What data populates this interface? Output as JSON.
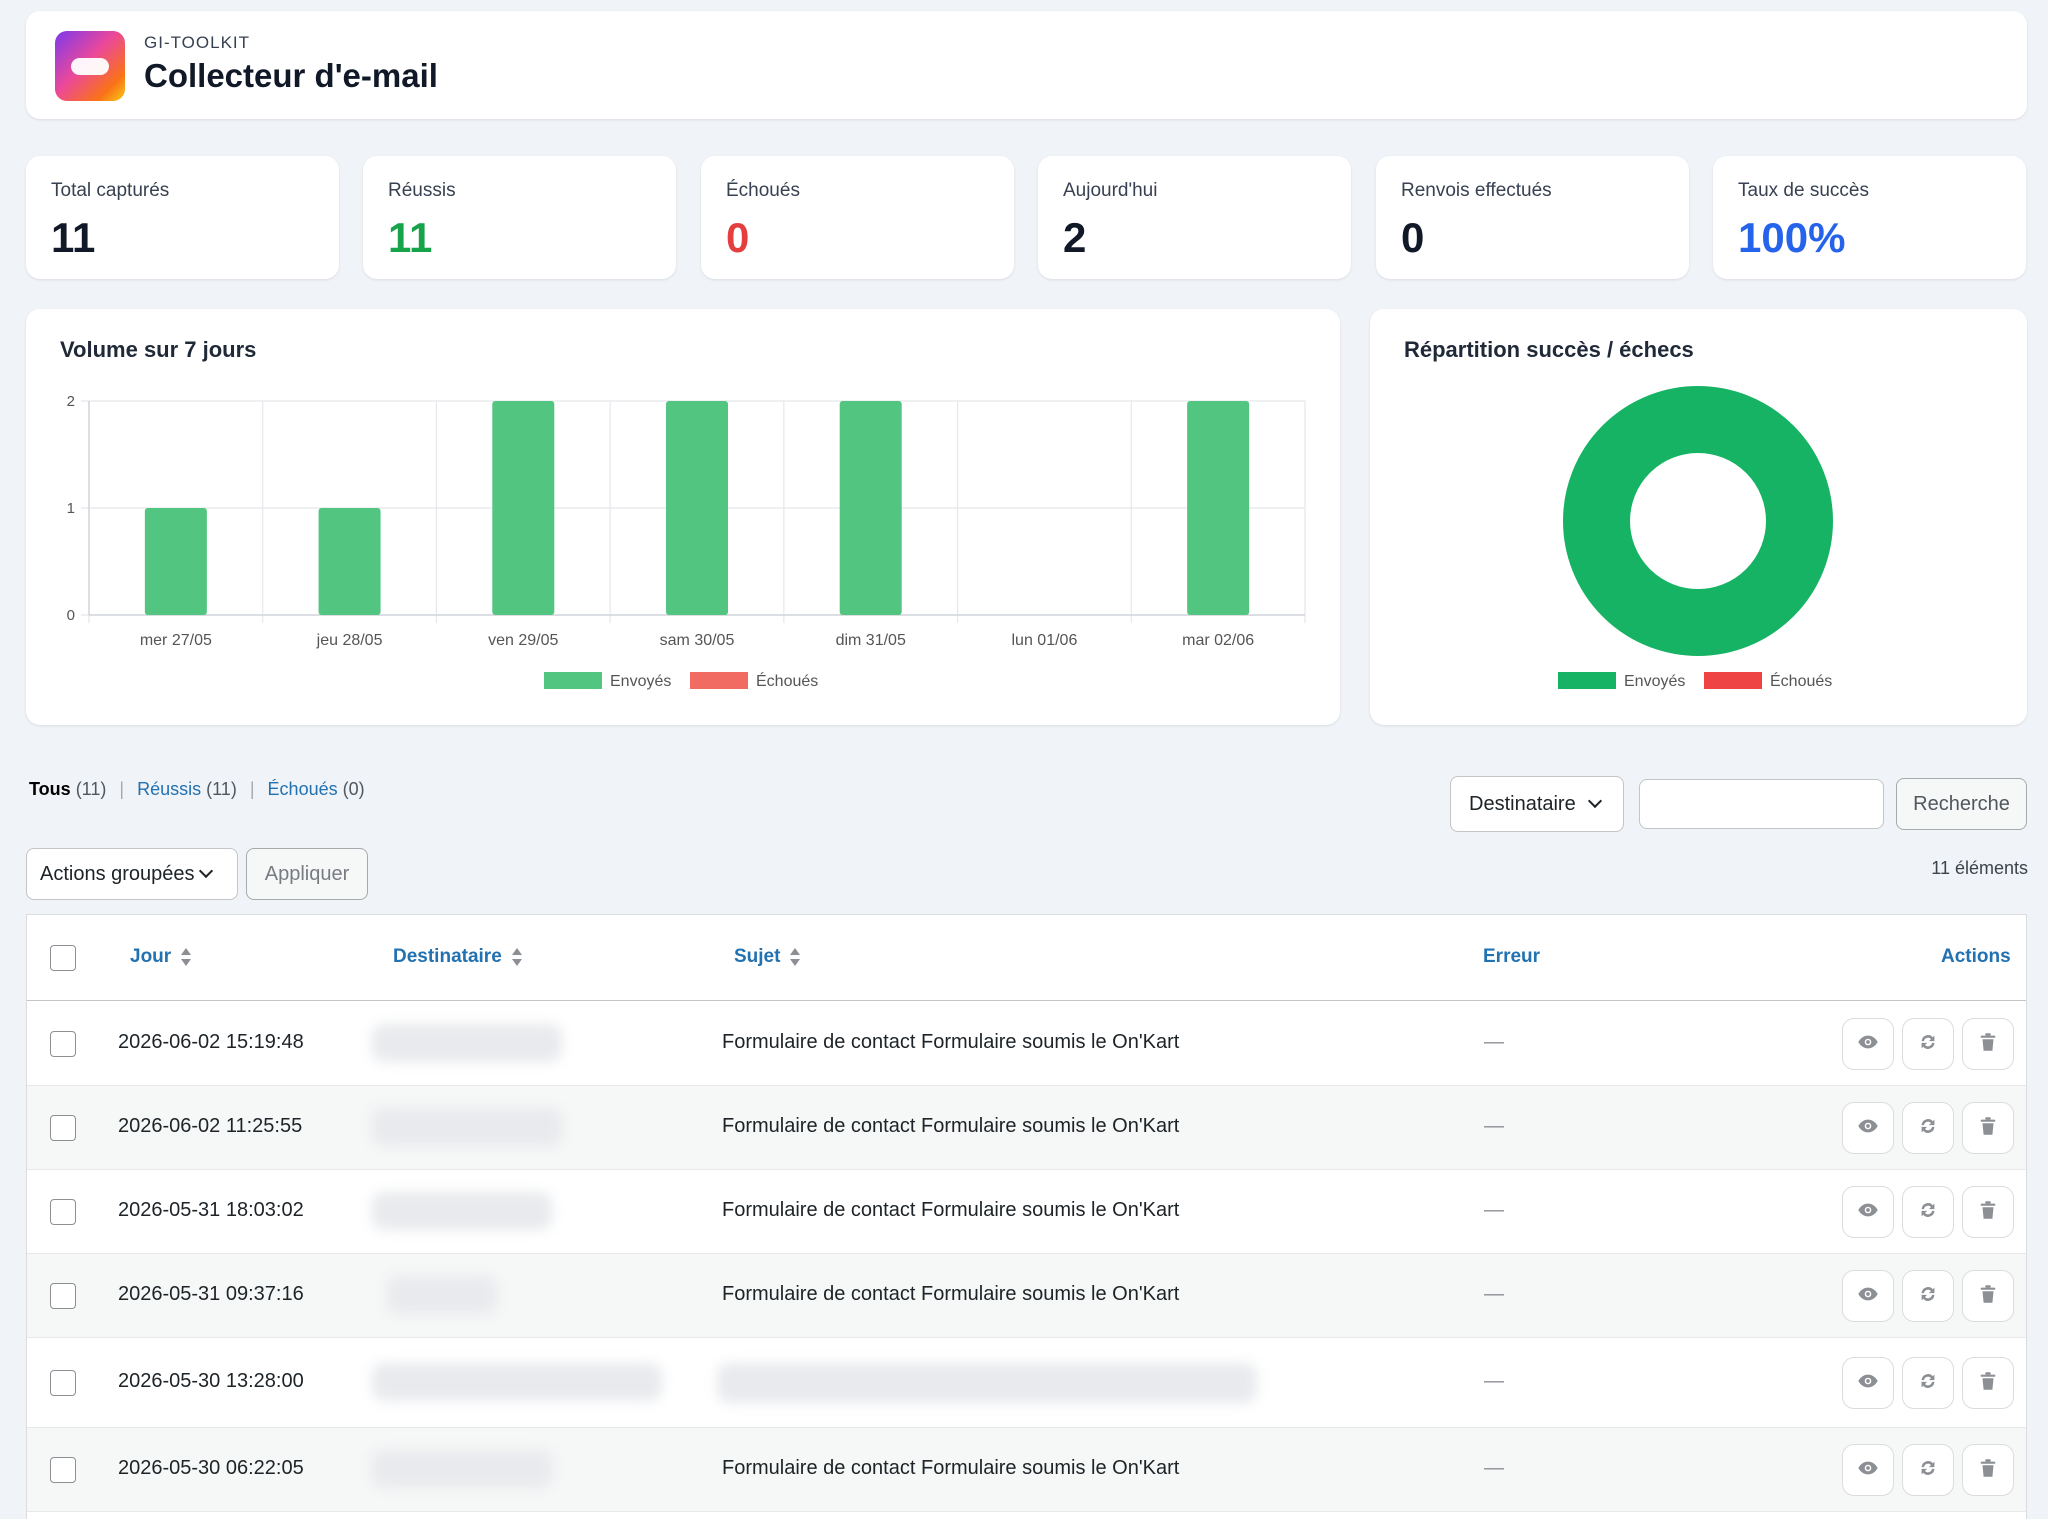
{
  "header": {
    "brand": "GI-TOOLKIT",
    "title": "Collecteur d'e-mail"
  },
  "stats": [
    {
      "label": "Total capturés",
      "value": "11",
      "color": "#111827"
    },
    {
      "label": "Réussis",
      "value": "11",
      "color": "#16a34a"
    },
    {
      "label": "Échoués",
      "value": "0",
      "color": "#e53e3e"
    },
    {
      "label": "Aujourd'hui",
      "value": "2",
      "color": "#111827"
    },
    {
      "label": "Renvois effectués",
      "value": "0",
      "color": "#111827"
    },
    {
      "label": "Taux de succès",
      "value": "100%",
      "color": "#2563eb"
    }
  ],
  "bar_chart": {
    "title": "Volume sur 7 jours"
  },
  "donut_chart": {
    "title": "Répartition succès / échecs"
  },
  "chart_data": [
    {
      "type": "bar",
      "title": "Volume sur 7 jours",
      "categories": [
        "mer 27/05",
        "jeu 28/05",
        "ven 29/05",
        "sam 30/05",
        "dim 31/05",
        "lun 01/06",
        "mar 02/06"
      ],
      "series": [
        {
          "name": "Envoyés",
          "values": [
            1,
            1,
            2,
            2,
            2,
            0,
            2
          ],
          "color": "#52c681"
        },
        {
          "name": "Échoués",
          "values": [
            0,
            0,
            0,
            0,
            0,
            0,
            0
          ],
          "color": "#f26b63"
        }
      ],
      "ylim": [
        0,
        2
      ],
      "yticks": [
        "0",
        "1",
        "2"
      ],
      "grid": true,
      "legend": "bottom"
    },
    {
      "type": "pie",
      "title": "Répartition succès / échecs",
      "labels": [
        "Envoyés",
        "Échoués"
      ],
      "values": [
        11,
        0
      ],
      "colors": [
        "#16b364",
        "#ef4444"
      ],
      "donut": true,
      "legend": "bottom"
    }
  ],
  "filters": {
    "all_label": "Tous",
    "all_count": "(11)",
    "ok_label": "Réussis",
    "ok_count": "(11)",
    "ko_label": "Échoués",
    "ko_count": "(0)",
    "separator": "|"
  },
  "search": {
    "field": "Destinataire",
    "button": "Recherche",
    "value": ""
  },
  "bulk": {
    "label": "Actions groupées",
    "apply": "Appliquer"
  },
  "count": "11 éléments",
  "table": {
    "headers": {
      "day": "Jour",
      "recipient": "Destinataire",
      "subject": "Sujet",
      "error": "Erreur",
      "actions": "Actions"
    },
    "rows": [
      {
        "day": "2026-06-02 15:19:48",
        "subject": "Formulaire de contact Formulaire soumis le On'Kart",
        "error": "—"
      },
      {
        "day": "2026-06-02 11:25:55",
        "subject": "Formulaire de contact Formulaire soumis le On'Kart",
        "error": "—"
      },
      {
        "day": "2026-05-31 18:03:02",
        "subject": "Formulaire de contact Formulaire soumis le On'Kart",
        "error": "—"
      },
      {
        "day": "2026-05-31 09:37:16",
        "subject": "Formulaire de contact Formulaire soumis le On'Kart",
        "error": "—"
      },
      {
        "day": "2026-05-30 13:28:00",
        "subject": "",
        "error": "—"
      },
      {
        "day": "2026-05-30 06:22:05",
        "subject": "Formulaire de contact Formulaire soumis le On'Kart",
        "error": "—"
      }
    ]
  }
}
